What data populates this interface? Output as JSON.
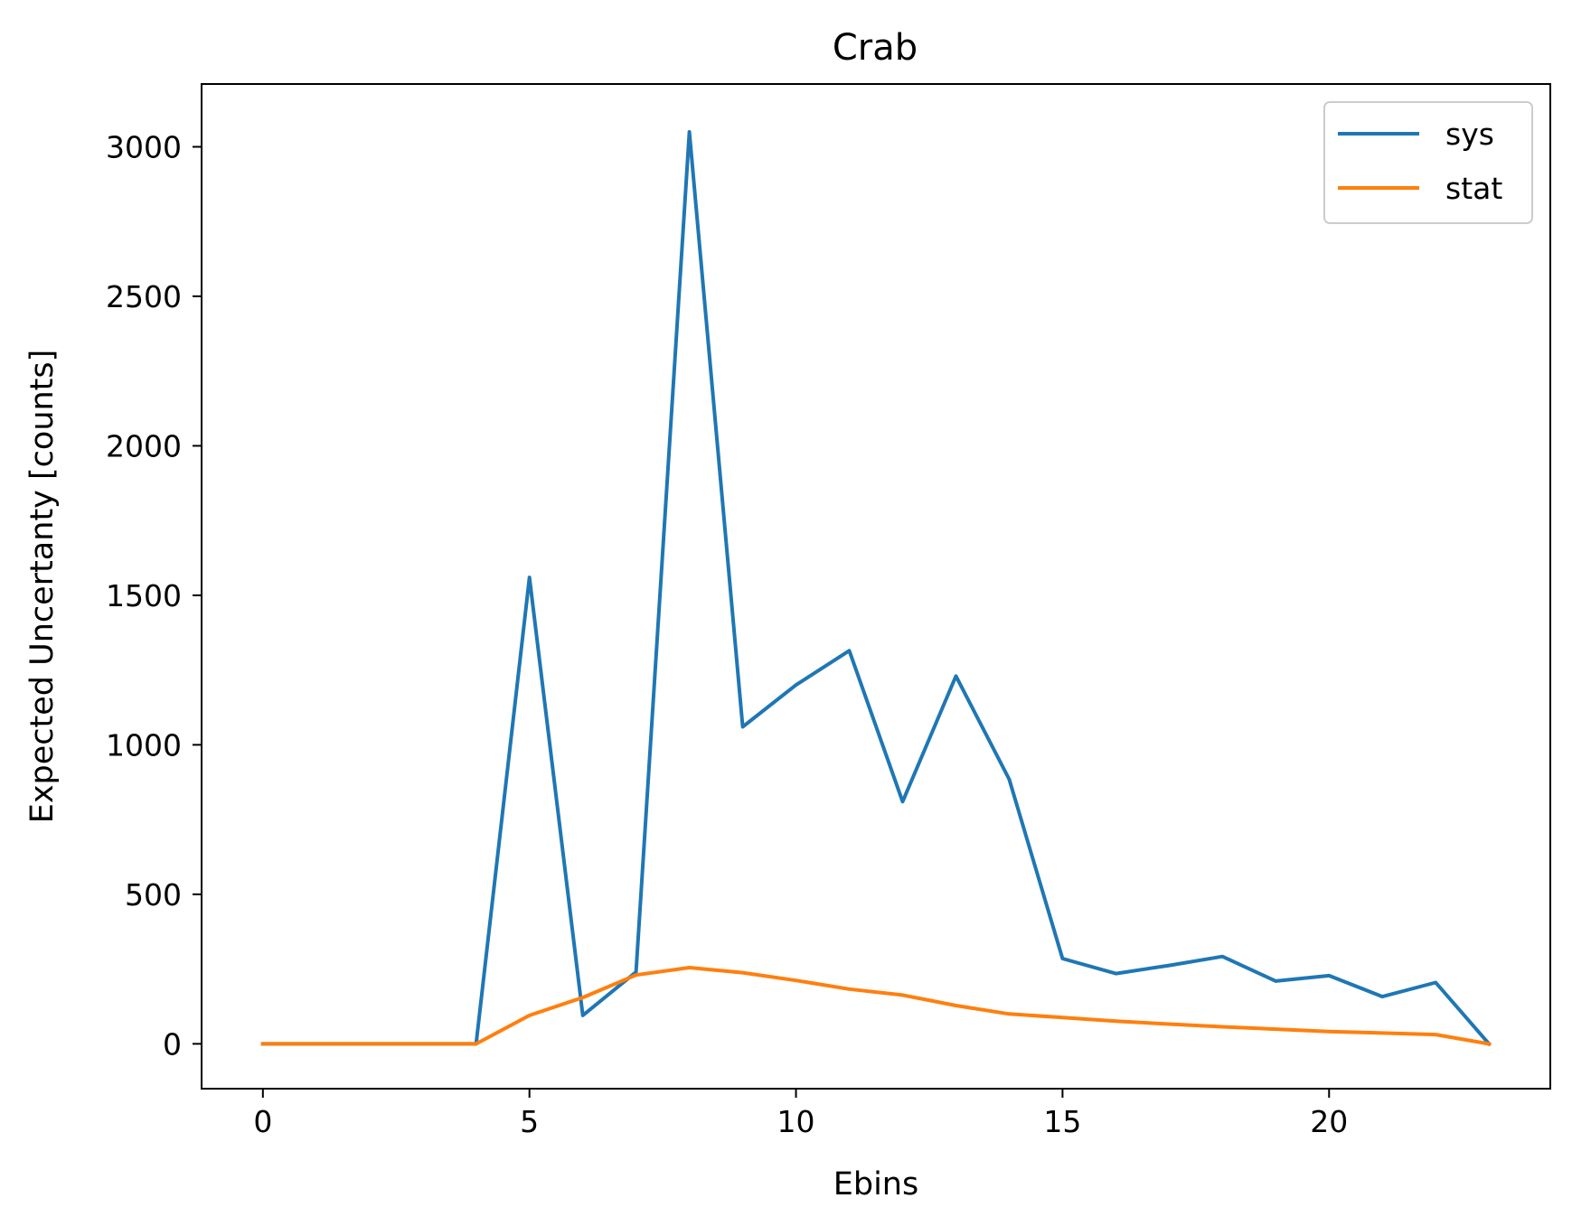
{
  "chart_data": {
    "type": "line",
    "title": "Crab",
    "xlabel": "Ebins",
    "ylabel": "Expected Uncertanty [counts]",
    "xlim": [
      -1.15,
      24.15
    ],
    "ylim": [
      -150,
      3210
    ],
    "xticks": [
      0,
      5,
      10,
      15,
      20
    ],
    "yticks": [
      0,
      500,
      1000,
      1500,
      2000,
      2500,
      3000
    ],
    "grid": false,
    "legend_position": "top-right",
    "x": [
      0,
      1,
      2,
      3,
      4,
      5,
      6,
      7,
      8,
      9,
      10,
      11,
      12,
      13,
      14,
      15,
      16,
      17,
      18,
      19,
      20,
      21,
      22,
      23
    ],
    "series": [
      {
        "name": "sys",
        "color": "#1f77b4",
        "values": [
          0,
          0,
          0,
          0,
          0,
          1560,
          95,
          240,
          3050,
          1060,
          1200,
          1315,
          810,
          1230,
          885,
          285,
          235,
          262,
          292,
          210,
          228,
          158,
          205,
          0
        ]
      },
      {
        "name": "stat",
        "color": "#ff7f0e",
        "values": [
          0,
          0,
          0,
          0,
          0,
          95,
          155,
          230,
          255,
          238,
          212,
          183,
          163,
          128,
          100,
          88,
          76,
          66,
          57,
          49,
          41,
          36,
          31,
          0
        ]
      }
    ]
  }
}
